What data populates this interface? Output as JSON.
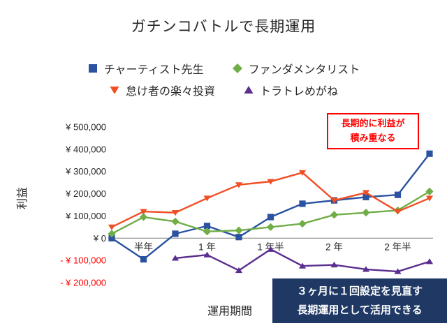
{
  "title": "ガチンコバトルで長期運用",
  "chart_data": {
    "type": "line",
    "title": "ガチンコバトルで長期運用",
    "xlabel": "運用期間",
    "ylabel": "利益",
    "ylim": [
      -200000,
      500000
    ],
    "grid": false,
    "legend_position": "top",
    "x_tick_labels": [
      "半年",
      "1 年",
      "1 年半",
      "2 年",
      "2 年半"
    ],
    "x_tick_indices": [
      1,
      3,
      5,
      7,
      9
    ],
    "y_ticks": [
      {
        "label": "¥ 500,000",
        "value": 500000
      },
      {
        "label": "¥ 400,000",
        "value": 400000
      },
      {
        "label": "¥ 300,000",
        "value": 300000
      },
      {
        "label": "¥ 200,000",
        "value": 200000
      },
      {
        "label": "¥ 100,000",
        "value": 100000
      },
      {
        "label": "¥ 0",
        "value": 0
      },
      {
        "label": "- ¥ 100,000",
        "value": -100000
      },
      {
        "label": "- ¥ 200,000",
        "value": -200000
      }
    ],
    "series": [
      {
        "name": "チャーティスト先生",
        "marker": "square",
        "color": "#2A52A0",
        "values": [
          0,
          -95000,
          20000,
          55000,
          5000,
          95000,
          155000,
          170000,
          185000,
          195000,
          380000
        ]
      },
      {
        "name": "ファンダメンタリスト",
        "marker": "diamond",
        "color": "#70AD47",
        "values": [
          20000,
          95000,
          75000,
          30000,
          35000,
          50000,
          65000,
          105000,
          115000,
          125000,
          210000
        ]
      },
      {
        "name": "怠け者の楽々投資",
        "marker": "triangle-down",
        "color": "#F04E23",
        "values": [
          50000,
          120000,
          115000,
          180000,
          240000,
          255000,
          295000,
          170000,
          205000,
          120000,
          180000
        ]
      },
      {
        "name": "トラトレめがね",
        "marker": "triangle-up",
        "color": "#5B2E90",
        "values": [
          null,
          null,
          -90000,
          -75000,
          -145000,
          -50000,
          -125000,
          -120000,
          -140000,
          -150000,
          -105000
        ]
      }
    ]
  },
  "annotations": {
    "callout": {
      "line1": "長期的に利益が",
      "line2": "積み重なる",
      "color": "#FF0000"
    },
    "note": {
      "line1": "３ヶ月に１回設定を見直す",
      "line2": "長期運用として活用できる",
      "bg": "#1F3864"
    }
  }
}
